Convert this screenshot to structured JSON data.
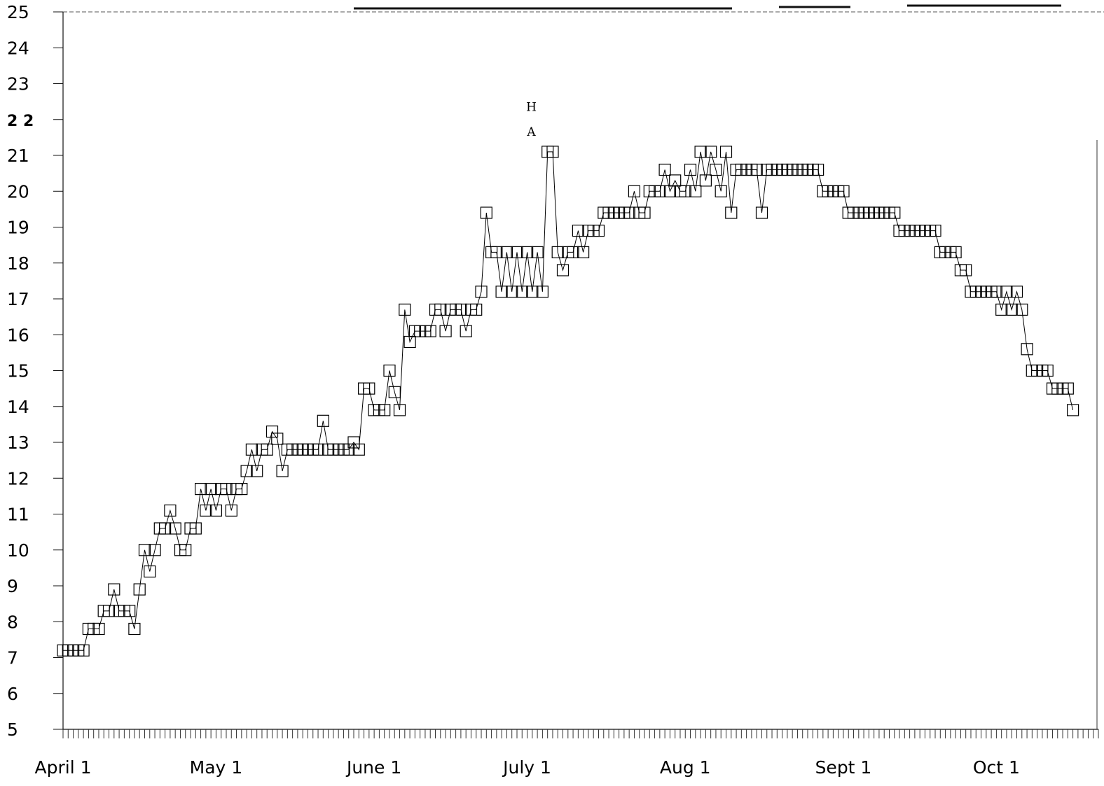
{
  "chart_data": {
    "type": "line",
    "title": "",
    "xlabel": "",
    "ylabel": "",
    "x_ticks": [
      "April 1",
      "May 1",
      "June 1",
      "July 1",
      "Aug 1",
      "Sept 1",
      "Oct 1"
    ],
    "x_tick_days": [
      0,
      30,
      61,
      91,
      122,
      153,
      183
    ],
    "y_ticks": [
      "5",
      "6",
      "7",
      "8",
      "9",
      "10",
      "11",
      "12",
      "13",
      "14",
      "15",
      "16",
      "17",
      "18",
      "19",
      "20",
      "21",
      "2 2",
      "23",
      "24",
      "25"
    ],
    "ylim": [
      5,
      25
    ],
    "xlim_days": [
      0,
      203
    ],
    "annotations": [
      {
        "text": "A",
        "day": 91,
        "value": 21.7
      },
      {
        "text": "H",
        "day": 91,
        "value": 22.4
      }
    ],
    "series": [
      {
        "marker": "square",
        "color": "#000000",
        "points": [
          [
            0,
            7.2
          ],
          [
            1,
            7.2
          ],
          [
            2,
            7.2
          ],
          [
            3,
            7.2
          ],
          [
            4,
            7.2
          ],
          [
            5,
            7.8
          ],
          [
            6,
            7.8
          ],
          [
            7,
            7.8
          ],
          [
            8,
            8.3
          ],
          [
            9,
            8.3
          ],
          [
            10,
            8.9
          ],
          [
            11,
            8.3
          ],
          [
            12,
            8.3
          ],
          [
            13,
            8.3
          ],
          [
            14,
            7.8
          ],
          [
            15,
            8.9
          ],
          [
            16,
            10.0
          ],
          [
            17,
            9.4
          ],
          [
            18,
            10.0
          ],
          [
            19,
            10.6
          ],
          [
            20,
            10.6
          ],
          [
            21,
            11.1
          ],
          [
            22,
            10.6
          ],
          [
            23,
            10.0
          ],
          [
            24,
            10.0
          ],
          [
            25,
            10.6
          ],
          [
            26,
            10.6
          ],
          [
            27,
            11.7
          ],
          [
            28,
            11.1
          ],
          [
            29,
            11.7
          ],
          [
            30,
            11.1
          ],
          [
            31,
            11.7
          ],
          [
            32,
            11.7
          ],
          [
            33,
            11.1
          ],
          [
            34,
            11.7
          ],
          [
            35,
            11.7
          ],
          [
            36,
            12.2
          ],
          [
            37,
            12.8
          ],
          [
            38,
            12.2
          ],
          [
            39,
            12.8
          ],
          [
            40,
            12.8
          ],
          [
            41,
            13.3
          ],
          [
            42,
            13.1
          ],
          [
            43,
            12.2
          ],
          [
            44,
            12.8
          ],
          [
            45,
            12.8
          ],
          [
            46,
            12.8
          ],
          [
            47,
            12.8
          ],
          [
            48,
            12.8
          ],
          [
            49,
            12.8
          ],
          [
            50,
            12.8
          ],
          [
            51,
            13.6
          ],
          [
            52,
            12.8
          ],
          [
            53,
            12.8
          ],
          [
            54,
            12.8
          ],
          [
            55,
            12.8
          ],
          [
            56,
            12.8
          ],
          [
            57,
            13.0
          ],
          [
            58,
            12.8
          ],
          [
            59,
            14.5
          ],
          [
            60,
            14.5
          ],
          [
            61,
            13.9
          ],
          [
            62,
            13.9
          ],
          [
            63,
            13.9
          ],
          [
            64,
            15.0
          ],
          [
            65,
            14.4
          ],
          [
            66,
            13.9
          ],
          [
            67,
            16.7
          ],
          [
            68,
            15.8
          ],
          [
            69,
            16.1
          ],
          [
            70,
            16.1
          ],
          [
            71,
            16.1
          ],
          [
            72,
            16.1
          ],
          [
            73,
            16.7
          ],
          [
            74,
            16.7
          ],
          [
            75,
            16.1
          ],
          [
            76,
            16.7
          ],
          [
            77,
            16.7
          ],
          [
            78,
            16.7
          ],
          [
            79,
            16.1
          ],
          [
            80,
            16.7
          ],
          [
            81,
            16.7
          ],
          [
            82,
            17.2
          ],
          [
            83,
            19.4
          ],
          [
            84,
            18.3
          ],
          [
            85,
            18.3
          ],
          [
            86,
            17.2
          ],
          [
            87,
            18.3
          ],
          [
            88,
            17.2
          ],
          [
            89,
            18.3
          ],
          [
            90,
            17.2
          ],
          [
            91,
            18.3
          ],
          [
            92,
            17.2
          ],
          [
            93,
            18.3
          ],
          [
            94,
            17.2
          ],
          [
            95,
            21.1
          ],
          [
            96,
            21.1
          ],
          [
            97,
            18.3
          ],
          [
            98,
            17.8
          ],
          [
            99,
            18.3
          ],
          [
            100,
            18.3
          ],
          [
            101,
            18.9
          ],
          [
            102,
            18.3
          ],
          [
            103,
            18.9
          ],
          [
            104,
            18.9
          ],
          [
            105,
            18.9
          ],
          [
            106,
            19.4
          ],
          [
            107,
            19.4
          ],
          [
            108,
            19.4
          ],
          [
            109,
            19.4
          ],
          [
            110,
            19.4
          ],
          [
            111,
            19.4
          ],
          [
            112,
            20.0
          ],
          [
            113,
            19.4
          ],
          [
            114,
            19.4
          ],
          [
            115,
            20.0
          ],
          [
            116,
            20.0
          ],
          [
            117,
            20.0
          ],
          [
            118,
            20.6
          ],
          [
            119,
            20.0
          ],
          [
            120,
            20.3
          ],
          [
            121,
            20.0
          ],
          [
            122,
            20.0
          ],
          [
            123,
            20.6
          ],
          [
            124,
            20.0
          ],
          [
            125,
            21.1
          ],
          [
            126,
            20.3
          ],
          [
            127,
            21.1
          ],
          [
            128,
            20.6
          ],
          [
            129,
            20.0
          ],
          [
            130,
            21.1
          ],
          [
            131,
            19.4
          ],
          [
            132,
            20.6
          ],
          [
            133,
            20.6
          ],
          [
            134,
            20.6
          ],
          [
            135,
            20.6
          ],
          [
            136,
            20.6
          ],
          [
            137,
            19.4
          ],
          [
            138,
            20.6
          ],
          [
            139,
            20.6
          ],
          [
            140,
            20.6
          ],
          [
            141,
            20.6
          ],
          [
            142,
            20.6
          ],
          [
            143,
            20.6
          ],
          [
            144,
            20.6
          ],
          [
            145,
            20.6
          ],
          [
            146,
            20.6
          ],
          [
            147,
            20.6
          ],
          [
            148,
            20.6
          ],
          [
            149,
            20.0
          ],
          [
            150,
            20.0
          ],
          [
            151,
            20.0
          ],
          [
            152,
            20.0
          ],
          [
            153,
            20.0
          ],
          [
            154,
            19.4
          ],
          [
            155,
            19.4
          ],
          [
            156,
            19.4
          ],
          [
            157,
            19.4
          ],
          [
            158,
            19.4
          ],
          [
            159,
            19.4
          ],
          [
            160,
            19.4
          ],
          [
            161,
            19.4
          ],
          [
            162,
            19.4
          ],
          [
            163,
            19.4
          ],
          [
            164,
            18.9
          ],
          [
            165,
            18.9
          ],
          [
            166,
            18.9
          ],
          [
            167,
            18.9
          ],
          [
            168,
            18.9
          ],
          [
            169,
            18.9
          ],
          [
            170,
            18.9
          ],
          [
            171,
            18.9
          ],
          [
            172,
            18.3
          ],
          [
            173,
            18.3
          ],
          [
            174,
            18.3
          ],
          [
            175,
            18.3
          ],
          [
            176,
            17.8
          ],
          [
            177,
            17.8
          ],
          [
            178,
            17.2
          ],
          [
            179,
            17.2
          ],
          [
            180,
            17.2
          ],
          [
            181,
            17.2
          ],
          [
            182,
            17.2
          ],
          [
            183,
            17.2
          ],
          [
            184,
            16.7
          ],
          [
            185,
            17.2
          ],
          [
            186,
            16.7
          ],
          [
            187,
            17.2
          ],
          [
            188,
            16.7
          ],
          [
            189,
            15.6
          ],
          [
            190,
            15.0
          ],
          [
            191,
            15.0
          ],
          [
            192,
            15.0
          ],
          [
            193,
            15.0
          ],
          [
            194,
            14.5
          ],
          [
            195,
            14.5
          ],
          [
            196,
            14.5
          ],
          [
            197,
            14.5
          ],
          [
            198,
            13.9
          ]
        ]
      }
    ]
  }
}
